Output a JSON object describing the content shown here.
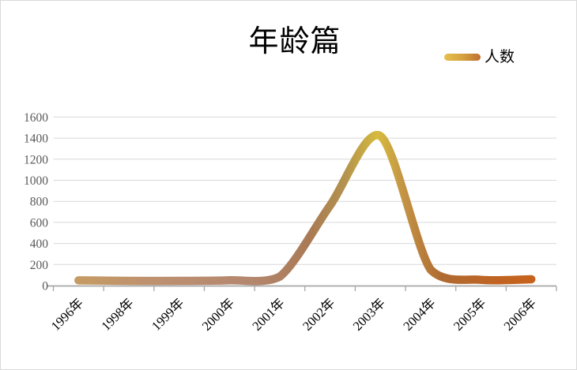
{
  "chart_data": {
    "type": "line",
    "title": "年龄篇",
    "legend": {
      "label": "人数",
      "position": "top-right"
    },
    "categories": [
      "1996年",
      "1998年",
      "1999年",
      "2000年",
      "2001年",
      "2002年",
      "2003年",
      "2004年",
      "2005年",
      "2006年"
    ],
    "series": [
      {
        "name": "人数",
        "values": [
          50,
          45,
          45,
          50,
          85,
          760,
          1420,
          150,
          55,
          60
        ]
      }
    ],
    "xlabel": "",
    "ylabel": "",
    "ylim": [
      0,
      1600
    ],
    "ytick_step": 200,
    "grid": true,
    "smooth": true,
    "x_label_rotation": 45,
    "line_width": 10.5,
    "line_gradient_colors": [
      "#c69c62",
      "#bd9070",
      "#b4876f",
      "#aa7a55",
      "#b3924e",
      "#d6ba3e",
      "#c39345",
      "#b06a31",
      "#c06322",
      "#c9621a"
    ],
    "line_gradient_stops": [
      0,
      0.18,
      0.38,
      0.5,
      0.575,
      0.645,
      0.7,
      0.78,
      0.9,
      1
    ],
    "legend_swatch_gradient": [
      "#e6c04e",
      "#d6a23f",
      "#c07030"
    ],
    "grid_color": "#d9d9d9",
    "axis_color": "#a6a6a6",
    "ylabel_color": "#595959",
    "xlabel_color": "#000000",
    "background_color": "#ffffff"
  }
}
